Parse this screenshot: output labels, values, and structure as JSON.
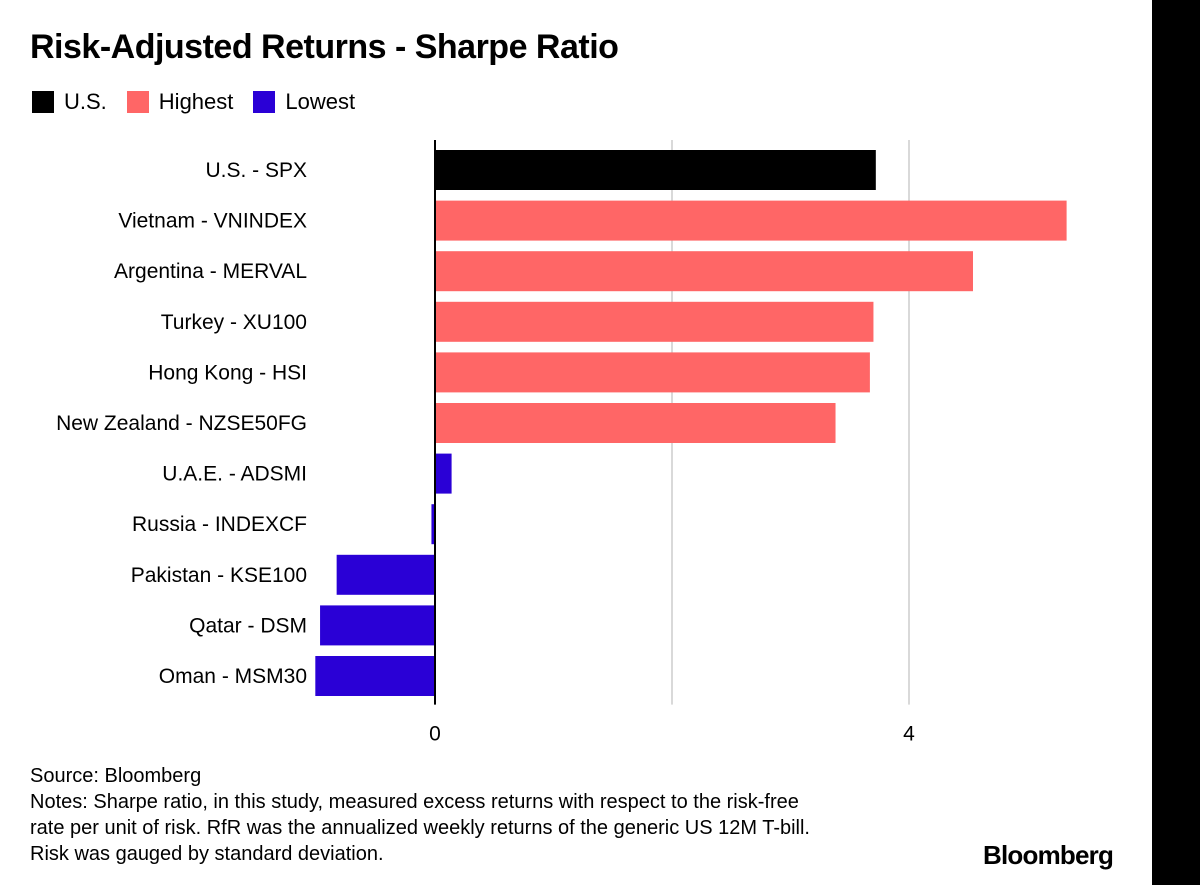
{
  "title": "Risk-Adjusted Returns - Sharpe Ratio",
  "legend": [
    {
      "label": "U.S.",
      "color": "#000000"
    },
    {
      "label": "Highest",
      "color": "#ff6666"
    },
    {
      "label": "Lowest",
      "color": "#2a00d6"
    }
  ],
  "chart_data": {
    "type": "bar",
    "orientation": "horizontal",
    "categories": [
      "U.S. - SPX",
      "Vietnam - VNINDEX",
      "Argentina - MERVAL",
      "Turkey - XU100",
      "Hong Kong - HSI",
      "New Zealand - NZSE50FG",
      "U.A.E. - ADSMI",
      "Russia - INDEXCF",
      "Pakistan - KSE100",
      "Qatar - DSM",
      "Oman - MSM30"
    ],
    "values": [
      3.72,
      5.33,
      4.54,
      3.7,
      3.67,
      3.38,
      0.14,
      -0.03,
      -0.83,
      -0.97,
      -1.01
    ],
    "groups": [
      "U.S.",
      "Highest",
      "Highest",
      "Highest",
      "Highest",
      "Highest",
      "Lowest",
      "Lowest",
      "Lowest",
      "Lowest",
      "Lowest"
    ],
    "xlim": [
      -1.05,
      5.5
    ],
    "xticks": [
      0,
      2,
      4
    ],
    "xtick_labels": [
      "0",
      "",
      "4"
    ],
    "grid": true
  },
  "footer": {
    "source": "Source: Bloomberg",
    "notes": [
      "Notes: Sharpe ratio, in this study, measured excess returns with respect to the risk-free",
      "rate per unit of risk. RfR was the annualized weekly returns of the generic US 12M T-bill.",
      "Risk was gauged by standard deviation."
    ]
  },
  "brand": "Bloomberg"
}
